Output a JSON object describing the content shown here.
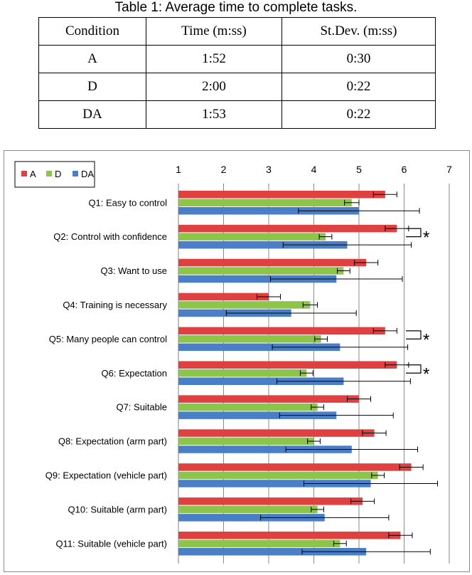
{
  "caption": "Table 1: Average time to complete tasks.",
  "table": {
    "headers": [
      "Condition",
      "Time (m:ss)",
      "St.Dev. (m:ss)"
    ],
    "rows": [
      [
        "A",
        "1:52",
        "0:30"
      ],
      [
        "D",
        "2:00",
        "0:22"
      ],
      [
        "DA",
        "1:53",
        "0:22"
      ]
    ]
  },
  "chart_data": {
    "type": "bar",
    "orientation": "horizontal",
    "xlim": [
      1,
      7
    ],
    "xticks": [
      "1",
      "2",
      "3",
      "4",
      "5",
      "6",
      "7"
    ],
    "grid": true,
    "legend_placement": "top-left",
    "categories": [
      "Q1: Easy to control",
      "Q2: Control with confidence",
      "Q3: Want to use",
      "Q4: Training is necessary",
      "Q5: Many people can control",
      "Q6: Expectation",
      "Q7: Suitable",
      "Q8: Expectation (arm part)",
      "Q9: Expectation (vehicle part)",
      "Q10: Suitable (arm part)",
      "Q11: Suitable (vehicle part)"
    ],
    "series": [
      {
        "name": "A",
        "color": "#e0403f",
        "values": [
          5.58,
          5.84,
          5.16,
          3.0,
          5.58,
          5.84,
          5.0,
          5.34,
          6.16,
          5.08,
          5.92
        ],
        "errors": [
          0.26,
          0.26,
          0.26,
          0.26,
          0.26,
          0.26,
          0.26,
          0.26,
          0.26,
          0.26,
          0.26
        ]
      },
      {
        "name": "D",
        "color": "#8dc44a",
        "values": [
          4.84,
          4.26,
          4.66,
          3.92,
          4.16,
          3.84,
          4.08,
          4.0,
          5.42,
          4.08,
          4.58
        ],
        "errors": [
          0.16,
          0.14,
          0.14,
          0.16,
          0.14,
          0.14,
          0.14,
          0.14,
          0.14,
          0.14,
          0.14
        ]
      },
      {
        "name": "DA",
        "color": "#4a7fc8",
        "values": [
          5.0,
          4.74,
          4.5,
          3.5,
          4.58,
          4.66,
          4.5,
          4.84,
          5.26,
          4.24,
          5.16
        ],
        "errors": [
          1.34,
          1.42,
          1.46,
          1.44,
          1.5,
          1.48,
          1.26,
          1.46,
          1.48,
          1.42,
          1.42
        ]
      }
    ],
    "significance": [
      {
        "category_index": 1,
        "marker": "*"
      },
      {
        "category_index": 4,
        "marker": "*"
      },
      {
        "category_index": 5,
        "marker": "*"
      }
    ]
  }
}
